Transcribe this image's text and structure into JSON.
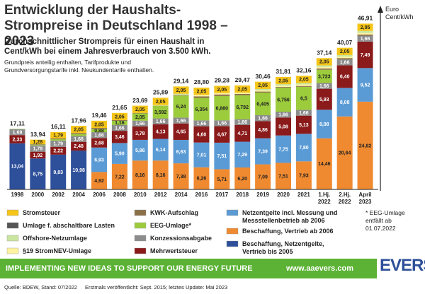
{
  "chart_data": {
    "type": "stacked_bar",
    "title": "Entwicklung der Haushalts-Strompreise in Deutschland 1998 – 2023",
    "subtitle": "Durchschnittlicher Strompreis für einen Haushalt in Cent/kWh bei einem Jahresverbrauch von 3.500 kWh.",
    "note": "Grundpreis anteilig enthalten, Tarifprodukte und Grundversorgungstarife inkl. Neukundentarife enthalten.",
    "y_label": "Euro Cent/kWh",
    "footnote": "* EEG-Umlage entfällt ab 01.07.2022",
    "banner": "IMPLEMENTING NEW IDEAS TO SUPPORT OUR ENERGY FUTURE",
    "url": "www.aaevers.com",
    "logo": "EVERS",
    "source": "Quelle: BDEW, Stand: 07/2022",
    "published": "Erstmals veröffentlicht: Sept. 2015; letztes Update: Mai 2023",
    "ylim": [
      0,
      48
    ],
    "categories": [
      "1998",
      "2000",
      "2002",
      "2004",
      "2006",
      "2008",
      "2010",
      "2012",
      "2014",
      "2016",
      "2017",
      "2018",
      "2019",
      "2020",
      "2021",
      "1.Hj. 2022",
      "2.Hj. 2022",
      "April 2023"
    ],
    "totals": {
      "values": [
        17.11,
        13.94,
        16.11,
        17.96,
        19.46,
        21.65,
        23.69,
        25.89,
        29.14,
        28.8,
        29.28,
        29.47,
        30.46,
        31.81,
        32.16,
        37.14,
        40.07,
        46.91
      ],
      "value_labels": [
        "17,11",
        "13,94",
        "16,11",
        "17,96",
        "19,46",
        "21,65",
        "23,69",
        "25,89",
        "29,14",
        "28,80",
        "29,28",
        "29,47",
        "30,46",
        "31,81",
        "32,16",
        "37,14",
        "40,07",
        "46,91"
      ]
    },
    "series": [
      {
        "name": "Beschaffung, Netzentgelte, Vertrieb bis 2005",
        "color": "#2e4f9a",
        "values": [
          13.04,
          8.75,
          9.83,
          10.98,
          null,
          null,
          null,
          null,
          null,
          null,
          null,
          null,
          null,
          null,
          null,
          null,
          null,
          null
        ],
        "value_labels": [
          "13,04",
          "8,75",
          "9,83",
          "10,98",
          null,
          null,
          null,
          null,
          null,
          null,
          null,
          null,
          null,
          null,
          null,
          null,
          null,
          null
        ]
      },
      {
        "name": "Beschaffung, Vertrieb ab 2006",
        "color": "#f08a30",
        "values": [
          null,
          null,
          null,
          null,
          4.92,
          7.22,
          8.16,
          8.16,
          7.38,
          6.26,
          5.71,
          6.2,
          7.09,
          7.51,
          7.93,
          14.46,
          20.64,
          24.82
        ],
        "value_labels": [
          null,
          null,
          null,
          null,
          "4,92",
          "7,22",
          "8,16",
          "8,16",
          "7,38",
          "6,26",
          "5,71",
          "6,20",
          "7,09",
          "7,51",
          "7,93",
          "14,46",
          "20,64",
          "24,82"
        ]
      },
      {
        "name": "Netzentgelte incl. Messung und Messstellenbetrieb ab 2006",
        "color": "#5b9bd5",
        "values": [
          null,
          null,
          null,
          null,
          6.93,
          5.9,
          5.86,
          6.14,
          6.63,
          7.01,
          7.51,
          7.29,
          7.39,
          7.75,
          7.8,
          8.08,
          8.08,
          9.52
        ],
        "value_labels": [
          null,
          null,
          null,
          null,
          "6,93",
          "5,90",
          "5,86",
          "6,14",
          "6,63",
          "7,01",
          "7,51",
          "7,29",
          "7,39",
          "7,75",
          "7,80",
          "8,08",
          "8,08",
          "9,52"
        ]
      },
      {
        "name": "Mehrwertsteuer",
        "color": "#8b1a1a",
        "values": [
          2.33,
          1.92,
          2.22,
          2.48,
          2.68,
          3.46,
          3.78,
          4.13,
          4.65,
          4.6,
          4.67,
          4.71,
          4.86,
          5.08,
          5.13,
          5.93,
          6.4,
          7.49
        ],
        "value_labels": [
          "2,33",
          "1,92",
          "2,22",
          "2,48",
          "2,68",
          "3,46",
          "3,78",
          "4,13",
          "4,65",
          "4,60",
          "4,67",
          "4,71",
          "4,86",
          "5,08",
          "5,13",
          "5,93",
          "6,40",
          "7,49"
        ]
      },
      {
        "name": "Konzessionsabgabe",
        "color": "#8c8c8c",
        "values": [
          1.69,
          1.79,
          1.79,
          1.66,
          1.66,
          1.66,
          1.66,
          1.66,
          1.66,
          1.66,
          1.66,
          1.66,
          1.66,
          1.66,
          1.66,
          1.66,
          1.66,
          1.66
        ],
        "value_labels": [
          "1,69",
          "1,79",
          "1,79",
          "1,66",
          "1,66",
          "1,66",
          "1,66",
          "1,66",
          "1,66",
          "1,66",
          "1,66",
          "1,66",
          "1,66",
          "1,66",
          "1,66",
          "1,66",
          "1,66",
          "1,66"
        ]
      },
      {
        "name": "EEG-Umlage*",
        "color": "#9ccc3c",
        "values": [
          0.08,
          0.2,
          0.35,
          0.51,
          0.88,
          1.16,
          2.05,
          3.592,
          6.24,
          6.354,
          6.88,
          6.792,
          6.405,
          6.756,
          6.5,
          3.723,
          null,
          null
        ],
        "value_labels": [
          null,
          null,
          null,
          null,
          "0,88",
          "1,16",
          "2,05",
          "3,592",
          "6,24",
          "6,354",
          "6,880",
          "6,792",
          "6,405",
          "6,756",
          "6,5",
          "3,723",
          null,
          null
        ]
      },
      {
        "name": "KWK-Aufschlag",
        "color": "#8b6f47",
        "values": [
          null,
          0.13,
          0.25,
          0.31,
          0.31,
          0.19,
          0.13,
          0.05,
          0.18,
          0.45,
          0.44,
          0.35,
          0.28,
          0.23,
          0.25,
          0.38,
          0.38,
          0.36
        ]
      },
      {
        "name": "§19 StromNEV-Umlage",
        "color": "#fff3a0",
        "values": [
          null,
          null,
          null,
          null,
          null,
          null,
          null,
          0.15,
          0.09,
          0.38,
          0.39,
          0.37,
          0.31,
          0.36,
          0.43,
          0.44,
          0.44,
          0.42
        ]
      },
      {
        "name": "Offshore-Netzumlage",
        "color": "#c9e6a0",
        "values": [
          null,
          null,
          null,
          null,
          null,
          null,
          null,
          null,
          0.25,
          0.04,
          null,
          null,
          0.42,
          0.42,
          0.4,
          0.42,
          0.42,
          0.59
        ]
      },
      {
        "name": "Umlage f. abschaltbare Lasten",
        "color": "#555555",
        "values": [
          null,
          null,
          null,
          null,
          null,
          null,
          null,
          null,
          null,
          0.006,
          0.006,
          0.011,
          0.005,
          0.007,
          0.009,
          0.003,
          0.003,
          null
        ]
      },
      {
        "name": "Stromsteuer",
        "color": "#f5c518",
        "values": [
          null,
          1.28,
          1.79,
          2.05,
          2.05,
          2.05,
          2.05,
          2.05,
          2.05,
          2.05,
          2.05,
          2.05,
          2.05,
          2.05,
          2.05,
          2.05,
          2.05,
          2.05
        ],
        "value_labels": [
          null,
          "1,28",
          "1,79",
          "2,05",
          "2,05",
          "2,05",
          "2,05",
          "2,05",
          "2,05",
          "2,05",
          "2,05",
          "2,05",
          "2,05",
          "2,05",
          "2,05",
          "2,05",
          "2,05",
          "2,05"
        ]
      }
    ]
  }
}
